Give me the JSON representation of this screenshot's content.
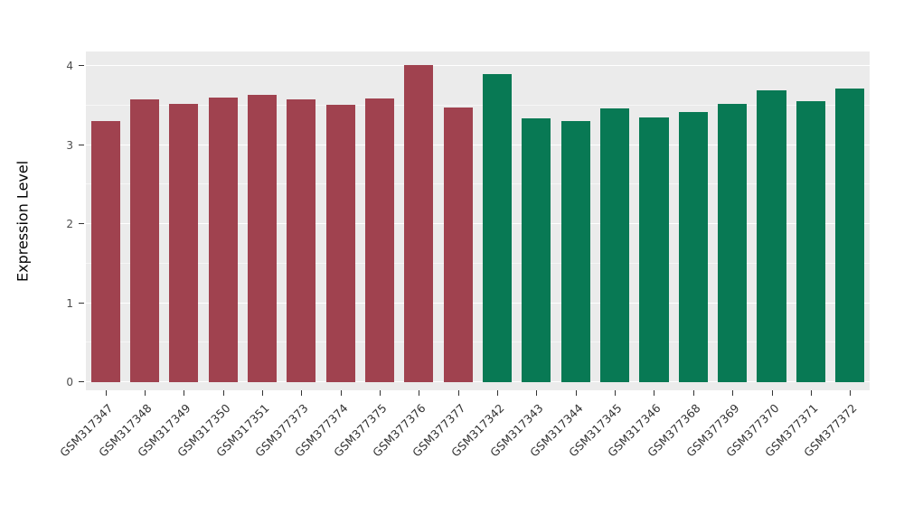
{
  "chart_data": {
    "type": "bar",
    "title": "",
    "xlabel": "",
    "ylabel": "Expression Level",
    "ylim": [
      0,
      4.18
    ],
    "yticks": [
      "0",
      "1",
      "2",
      "3",
      "4"
    ],
    "ytick_values": [
      0,
      1,
      2,
      3,
      4
    ],
    "minor_tick_values": [
      0.5,
      1.5,
      2.5,
      3.5
    ],
    "grid": "on",
    "legend_position": "none",
    "panel_background": "#EBEBEB",
    "grid_color": "#FFFFFF",
    "categories": [
      "GSM317347",
      "GSM317348",
      "GSM317349",
      "GSM317350",
      "GSM317351",
      "GSM377373",
      "GSM377374",
      "GSM377375",
      "GSM377376",
      "GSM377377",
      "GSM317342",
      "GSM317343",
      "GSM317344",
      "GSM317345",
      "GSM317346",
      "GSM377368",
      "GSM377369",
      "GSM377370",
      "GSM377371",
      "GSM377372"
    ],
    "values": [
      3.3,
      3.58,
      3.52,
      3.6,
      3.64,
      3.58,
      3.51,
      3.59,
      4.01,
      3.48,
      3.9,
      3.34,
      3.3,
      3.46,
      3.35,
      3.42,
      3.52,
      3.69,
      3.55,
      3.71
    ],
    "bar_groups": [
      0,
      0,
      0,
      0,
      0,
      0,
      0,
      0,
      0,
      0,
      1,
      1,
      1,
      1,
      1,
      1,
      1,
      1,
      1,
      1
    ],
    "group_colors": [
      "#A0424F",
      "#087954"
    ]
  }
}
